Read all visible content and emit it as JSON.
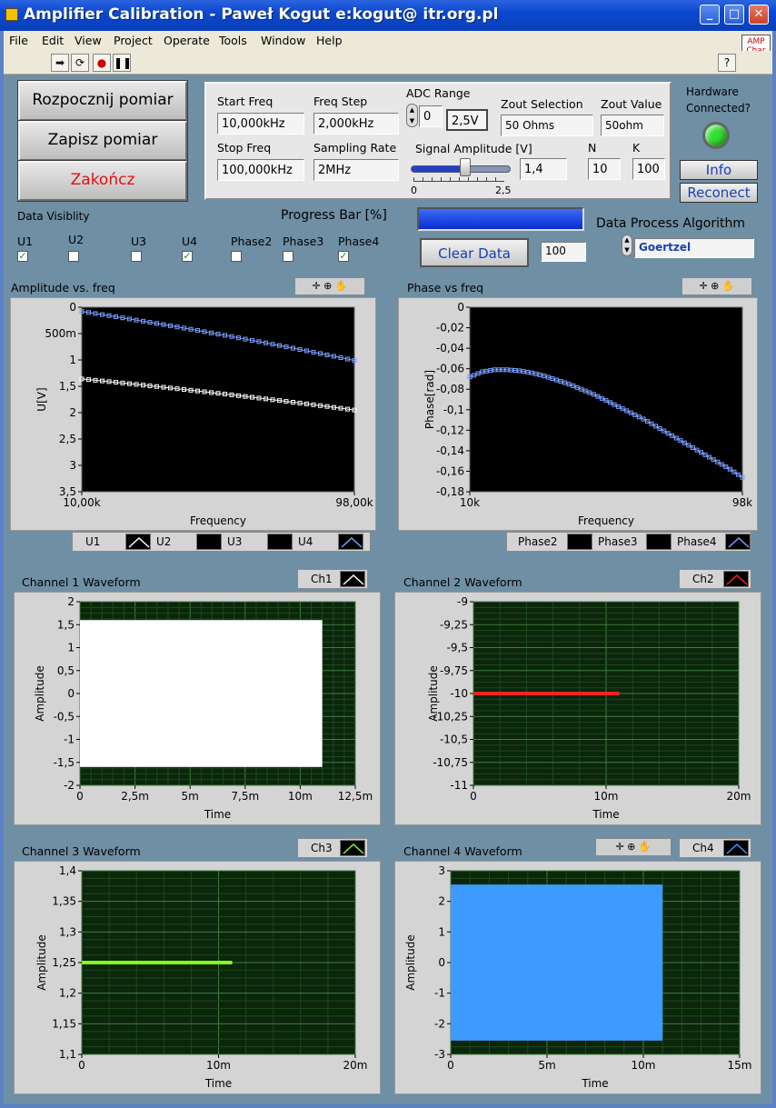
{
  "window": {
    "title": "Amplifier Calibration - Paweł Kogut e:kogut@ itr.org.pl",
    "min": "_",
    "max": "□",
    "close": "✕"
  },
  "menu": [
    "File",
    "Edit",
    "View",
    "Project",
    "Operate",
    "Tools",
    "Window",
    "Help"
  ],
  "badge": {
    "line1": "AMP",
    "line2": "Char",
    "line3": "main"
  },
  "help_glyph": "?",
  "buttons": {
    "start": "Rozpocznij pomiar",
    "save": "Zapisz pomiar",
    "end": "Zakończ",
    "info": "Info",
    "reconnect": "Reconect",
    "clear": "Clear Data"
  },
  "config": {
    "start_freq_label": "Start Freq",
    "start_freq": "10,000kHz",
    "freq_step_label": "Freq Step",
    "freq_step": "2,000kHz",
    "stop_freq_label": "Stop Freq",
    "stop_freq": "100,000kHz",
    "sampling_rate_label": "Sampling Rate",
    "sampling_rate": "2MHz",
    "adc_range_label": "ADC  Range",
    "adc_index": "0",
    "adc_value": "2,5V",
    "zout_sel_label": "Zout Selection",
    "zout_sel": "50 Ohms",
    "zout_val_label": "Zout Value",
    "zout_val": "50ohm",
    "amp_label": "Signal Amplitude [V]",
    "amp_value": "1,4",
    "amp_fraction": 0.56,
    "amp_min": "0",
    "amp_max": "2,5",
    "n_label": "N",
    "n": "10",
    "k_label": "K",
    "k": "100"
  },
  "hardware": {
    "label1": "Hardware",
    "label2": "Connected?",
    "led_color": "#32e032"
  },
  "visibility": {
    "title": "Data Visiblity",
    "items": [
      {
        "label": "U1",
        "checked": true
      },
      {
        "label": "U2",
        "checked": false
      },
      {
        "label": "U3",
        "checked": false
      },
      {
        "label": "U4",
        "checked": true
      },
      {
        "label": "Phase2",
        "checked": false
      },
      {
        "label": "Phase3",
        "checked": false
      },
      {
        "label": "Phase4",
        "checked": true
      }
    ]
  },
  "progress": {
    "label": "Progress Bar [%]",
    "value": 100,
    "display": "100"
  },
  "algorithm": {
    "label": "Data Process Algorithm",
    "value": "Goertzel"
  },
  "legend_amp": [
    "U1",
    "U2",
    "U3",
    "U4"
  ],
  "legend_phase": [
    "Phase2",
    "Phase3",
    "Phase4"
  ],
  "chart_data": [
    {
      "type": "scatter",
      "title": "Amplitude vs. freq",
      "xlabel": "Frequency",
      "ylabel": "U[V]",
      "xlim": [
        10,
        98
      ],
      "ylim": [
        0,
        3.5
      ],
      "xticks": [
        "10,00k",
        "98,00k"
      ],
      "yticks": [
        "0",
        "500m",
        "1",
        "1,5",
        "2",
        "2,5",
        "3",
        "3,5"
      ],
      "series": [
        {
          "name": "U4",
          "color": "#7aa0ff",
          "x": [
            10,
            98
          ],
          "y": [
            3.42,
            2.49
          ]
        },
        {
          "name": "U1",
          "color": "#ffffff",
          "x": [
            10,
            98
          ],
          "y": [
            2.14,
            1.55
          ]
        }
      ]
    },
    {
      "type": "scatter",
      "title": "Phase vs freq",
      "xlabel": "Frequency",
      "ylabel": "Phase[rad]",
      "xlim": [
        10,
        98
      ],
      "ylim": [
        -0.18,
        0
      ],
      "xticks": [
        "10k",
        "98k"
      ],
      "yticks": [
        "0",
        "-0,02",
        "-0,04",
        "-0,06",
        "-0,08",
        "-0,1",
        "-0,12",
        "-0,14",
        "-0,16",
        "-0,18"
      ],
      "series": [
        {
          "name": "Phase4",
          "color": "#7aa0ff",
          "x": [
            10,
            14,
            18,
            22,
            26,
            30,
            34,
            38,
            42,
            46,
            50,
            54,
            58,
            62,
            66,
            70,
            74,
            78,
            82,
            86,
            90,
            94,
            98
          ],
          "y": [
            -0.068,
            -0.063,
            -0.061,
            -0.061,
            -0.062,
            -0.064,
            -0.067,
            -0.071,
            -0.075,
            -0.08,
            -0.085,
            -0.091,
            -0.097,
            -0.103,
            -0.109,
            -0.116,
            -0.123,
            -0.13,
            -0.137,
            -0.144,
            -0.151,
            -0.158,
            -0.166
          ]
        }
      ]
    },
    {
      "type": "area",
      "title": "Channel 1 Waveform",
      "legend": "Ch1",
      "xlabel": "Time",
      "ylabel": "Amplitude",
      "xlim": [
        0,
        0.0125
      ],
      "ylim": [
        -2,
        2
      ],
      "xticks": [
        "0",
        "2,5m",
        "5m",
        "7,5m",
        "10m",
        "12,5m"
      ],
      "yticks": [
        "2",
        "1,5",
        "1",
        "0,5",
        "0",
        "-0,5",
        "-1",
        "-1,5",
        "-2"
      ],
      "band": {
        "x": [
          0,
          0.011
        ],
        "y": [
          -1.6,
          1.6
        ],
        "color": "#ffffff"
      }
    },
    {
      "type": "line",
      "title": "Channel 2 Waveform",
      "legend": "Ch2",
      "xlabel": "Time",
      "ylabel": "Amplitude",
      "xlim": [
        0,
        0.02
      ],
      "ylim": [
        -11,
        -9
      ],
      "xticks": [
        "0",
        "10m",
        "20m"
      ],
      "yticks": [
        "-9",
        "-9,25",
        "-9,5",
        "-9,75",
        "-10",
        "-10,25",
        "-10,5",
        "-10,75",
        "-11"
      ],
      "line": {
        "x": [
          0,
          0.011
        ],
        "y": -10,
        "color": "#ff2020"
      }
    },
    {
      "type": "line",
      "title": "Channel 3 Waveform",
      "legend": "Ch3",
      "xlabel": "Time",
      "ylabel": "Amplitude",
      "xlim": [
        0,
        0.02
      ],
      "ylim": [
        1.1,
        1.4
      ],
      "xticks": [
        "0",
        "10m",
        "20m"
      ],
      "yticks": [
        "1,4",
        "1,35",
        "1,3",
        "1,25",
        "1,2",
        "1,15",
        "1,1"
      ],
      "line": {
        "x": [
          0,
          0.011
        ],
        "y": 1.25,
        "color": "#80ff20"
      }
    },
    {
      "type": "area",
      "title": "Channel 4 Waveform",
      "legend": "Ch4",
      "xlabel": "Time",
      "ylabel": "Amplitude",
      "xlim": [
        0,
        0.015
      ],
      "ylim": [
        -3,
        3
      ],
      "xticks": [
        "0",
        "5m",
        "10m",
        "15m"
      ],
      "yticks": [
        "3",
        "2",
        "1",
        "0",
        "-1",
        "-2",
        "-3"
      ],
      "band": {
        "x": [
          0,
          0.011
        ],
        "y": [
          -2.55,
          2.55
        ],
        "color": "#3d9bff"
      }
    }
  ]
}
